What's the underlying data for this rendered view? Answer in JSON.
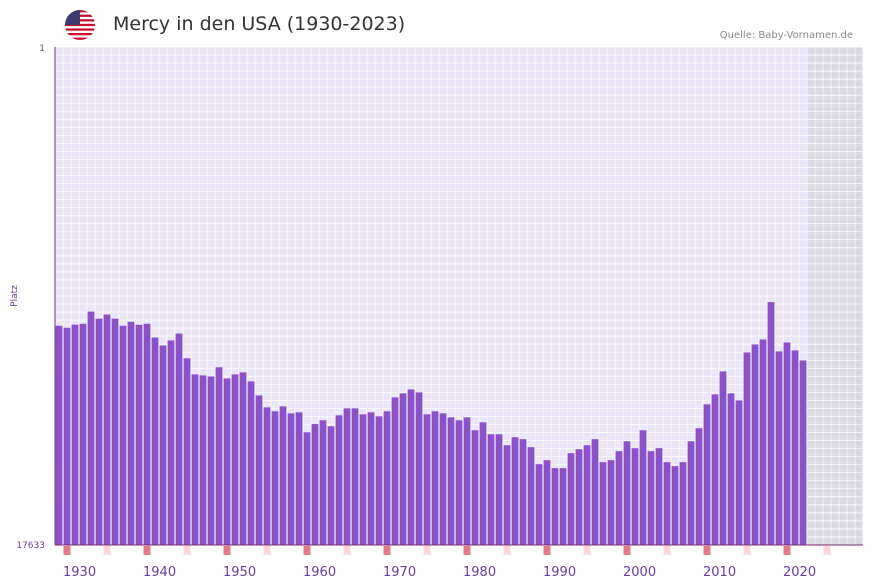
{
  "header": {
    "title": "Mercy in den USA (1930-2023)",
    "source": "Quelle: Baby-Vornamen.de",
    "flag_icon": "us-flag-icon"
  },
  "colors": {
    "bar": "#8a52c6",
    "plot_bg": "#ebe6f7",
    "future_bg": "#dcd9e6",
    "axis": "#7b2e6e",
    "tick_text": "#6a3d9a",
    "decade_marker": "#e07b86",
    "half_decade_marker": "#f8d6da"
  },
  "chart_data": {
    "type": "bar",
    "title": "Mercy in den USA (1930-2023)",
    "xlabel": "",
    "ylabel": "Platz",
    "y_axis_inverted": true,
    "ylim": [
      1,
      17633
    ],
    "ytick_labels": [
      "1",
      "17633"
    ],
    "xlim": [
      1929,
      2029
    ],
    "future_start_year": 2023,
    "xtick_labels": [
      "1930",
      "1940",
      "1950",
      "1960",
      "1970",
      "1980",
      "1990",
      "2000",
      "2010",
      "2020"
    ],
    "xtick_years": [
      1930,
      1940,
      1950,
      1960,
      1970,
      1980,
      1990,
      2000,
      2010,
      2020
    ],
    "years": [
      1929,
      1930,
      1931,
      1932,
      1933,
      1934,
      1935,
      1936,
      1937,
      1938,
      1939,
      1940,
      1941,
      1942,
      1943,
      1944,
      1945,
      1946,
      1947,
      1948,
      1949,
      1950,
      1951,
      1952,
      1953,
      1954,
      1955,
      1956,
      1957,
      1958,
      1959,
      1960,
      1961,
      1962,
      1963,
      1964,
      1965,
      1966,
      1967,
      1968,
      1969,
      1970,
      1971,
      1972,
      1973,
      1974,
      1975,
      1976,
      1977,
      1978,
      1979,
      1980,
      1981,
      1982,
      1983,
      1984,
      1985,
      1986,
      1987,
      1988,
      1989,
      1990,
      1991,
      1992,
      1993,
      1994,
      1995,
      1996,
      1997,
      1998,
      1999,
      2000,
      2001,
      2002,
      2003,
      2004,
      2005,
      2006,
      2007,
      2008,
      2009,
      2010,
      2011,
      2012,
      2013,
      2014,
      2015,
      2016,
      2017,
      2018,
      2019,
      2020,
      2021,
      2022
    ],
    "ranks": [
      9872,
      9942,
      9830,
      9801,
      9370,
      9621,
      9474,
      9621,
      9871,
      9730,
      9836,
      9801,
      10285,
      10568,
      10391,
      10145,
      11021,
      11593,
      11628,
      11664,
      11341,
      11735,
      11593,
      11522,
      11841,
      12336,
      12759,
      12900,
      12724,
      12971,
      12935,
      13641,
      13350,
      13216,
      13428,
      13041,
      12794,
      12794,
      13005,
      12935,
      13076,
      12900,
      12406,
      12265,
      12124,
      12229,
      13005,
      12900,
      12971,
      13112,
      13217,
      13112,
      13570,
      13288,
      13712,
      13712,
      14100,
      13817,
      13888,
      14170,
      14771,
      14630,
      14912,
      14912,
      14382,
      14241,
      14100,
      13888,
      14700,
      14630,
      14312,
      13959,
      14206,
      13570,
      14312,
      14206,
      14700,
      14841,
      14700,
      13959,
      13499,
      12653,
      12300,
      11487,
      12265,
      12512,
      10815,
      10532,
      10356,
      9031,
      10779,
      10462,
      10744,
      11098
    ]
  }
}
